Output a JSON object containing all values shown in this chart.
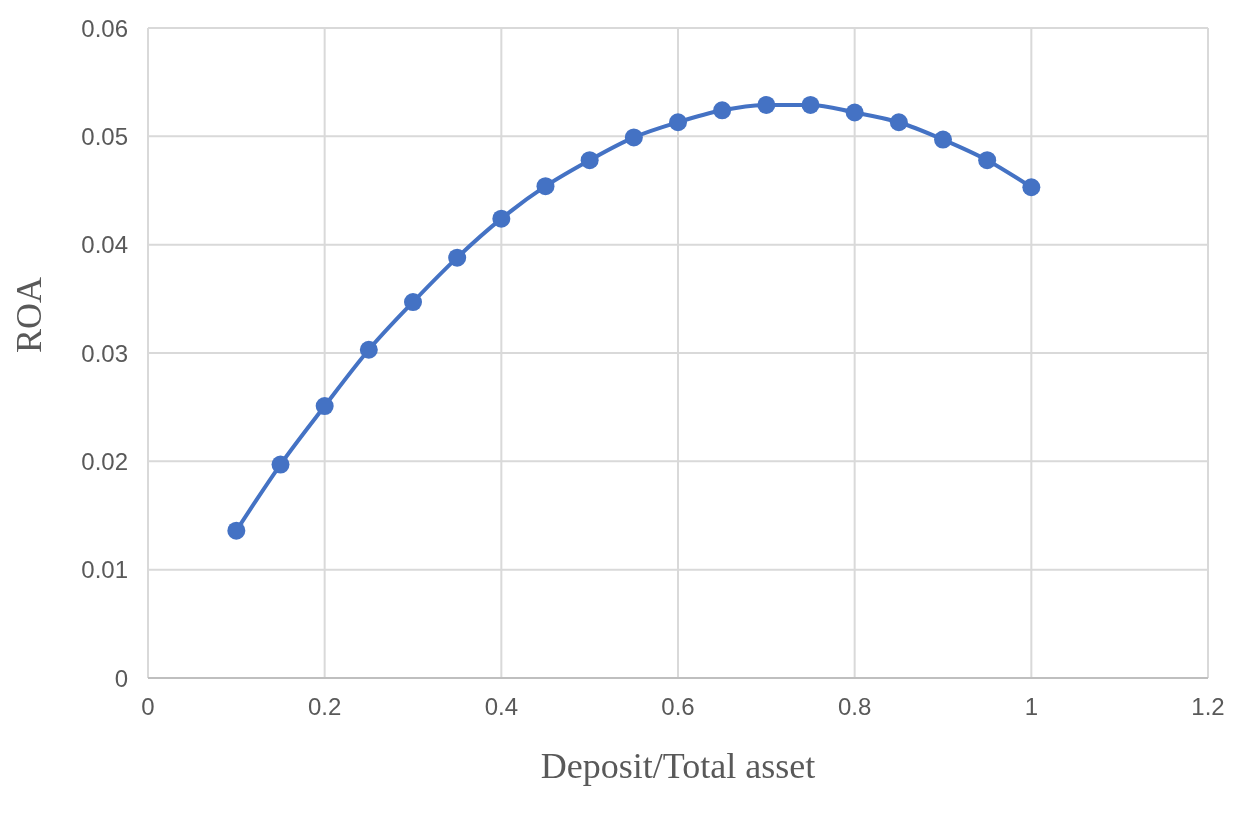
{
  "chart_data": {
    "type": "line",
    "xlabel": "Deposit/Total asset",
    "ylabel": "ROA",
    "x": [
      0.1,
      0.15,
      0.2,
      0.25,
      0.3,
      0.35,
      0.4,
      0.45,
      0.5,
      0.55,
      0.6,
      0.65,
      0.7,
      0.75,
      0.8,
      0.85,
      0.9,
      0.95,
      1.0
    ],
    "series": [
      {
        "color": "#4472c4",
        "values": [
          0.0136,
          0.0197,
          0.0251,
          0.0303,
          0.0347,
          0.0388,
          0.0424,
          0.0454,
          0.0478,
          0.0499,
          0.0513,
          0.0524,
          0.0529,
          0.0529,
          0.0522,
          0.0513,
          0.0497,
          0.0478,
          0.0453
        ]
      }
    ],
    "xlim": [
      0,
      1.2
    ],
    "xticks": [
      0,
      0.2,
      0.4,
      0.6,
      0.8,
      1,
      1.2
    ],
    "ylim": [
      0,
      0.06
    ],
    "yticks": [
      0,
      0.01,
      0.02,
      0.03,
      0.04,
      0.05,
      0.06
    ],
    "grid": true,
    "marker": "circle",
    "line_style": "solid"
  }
}
